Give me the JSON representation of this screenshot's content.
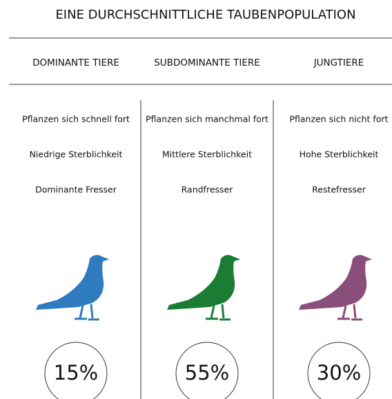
{
  "title": "EINE DURCHSCHNITTLICHE TAUBENPOPULATION",
  "columns": [
    {
      "header": "DOMINANTE TIERE",
      "traits": [
        "Pflanzen sich schnell fort",
        "Niedrige Sterblichkeit",
        "Dominante Fresser"
      ],
      "share": "15%",
      "color": "#2e7bbf"
    },
    {
      "header": "SUBDOMINANTE TIERE",
      "traits": [
        "Pflanzen sich manchmal fort",
        "Mittlere Sterblichkeit",
        "Randfresser"
      ],
      "share": "55%",
      "color": "#1b7c34"
    },
    {
      "header": "JUNGTIERE",
      "traits": [
        "Pflanzen sich nicht fort",
        "Hohe Sterblichkeit",
        "Restefresser"
      ],
      "share": "30%",
      "color": "#8a4e7b"
    }
  ]
}
